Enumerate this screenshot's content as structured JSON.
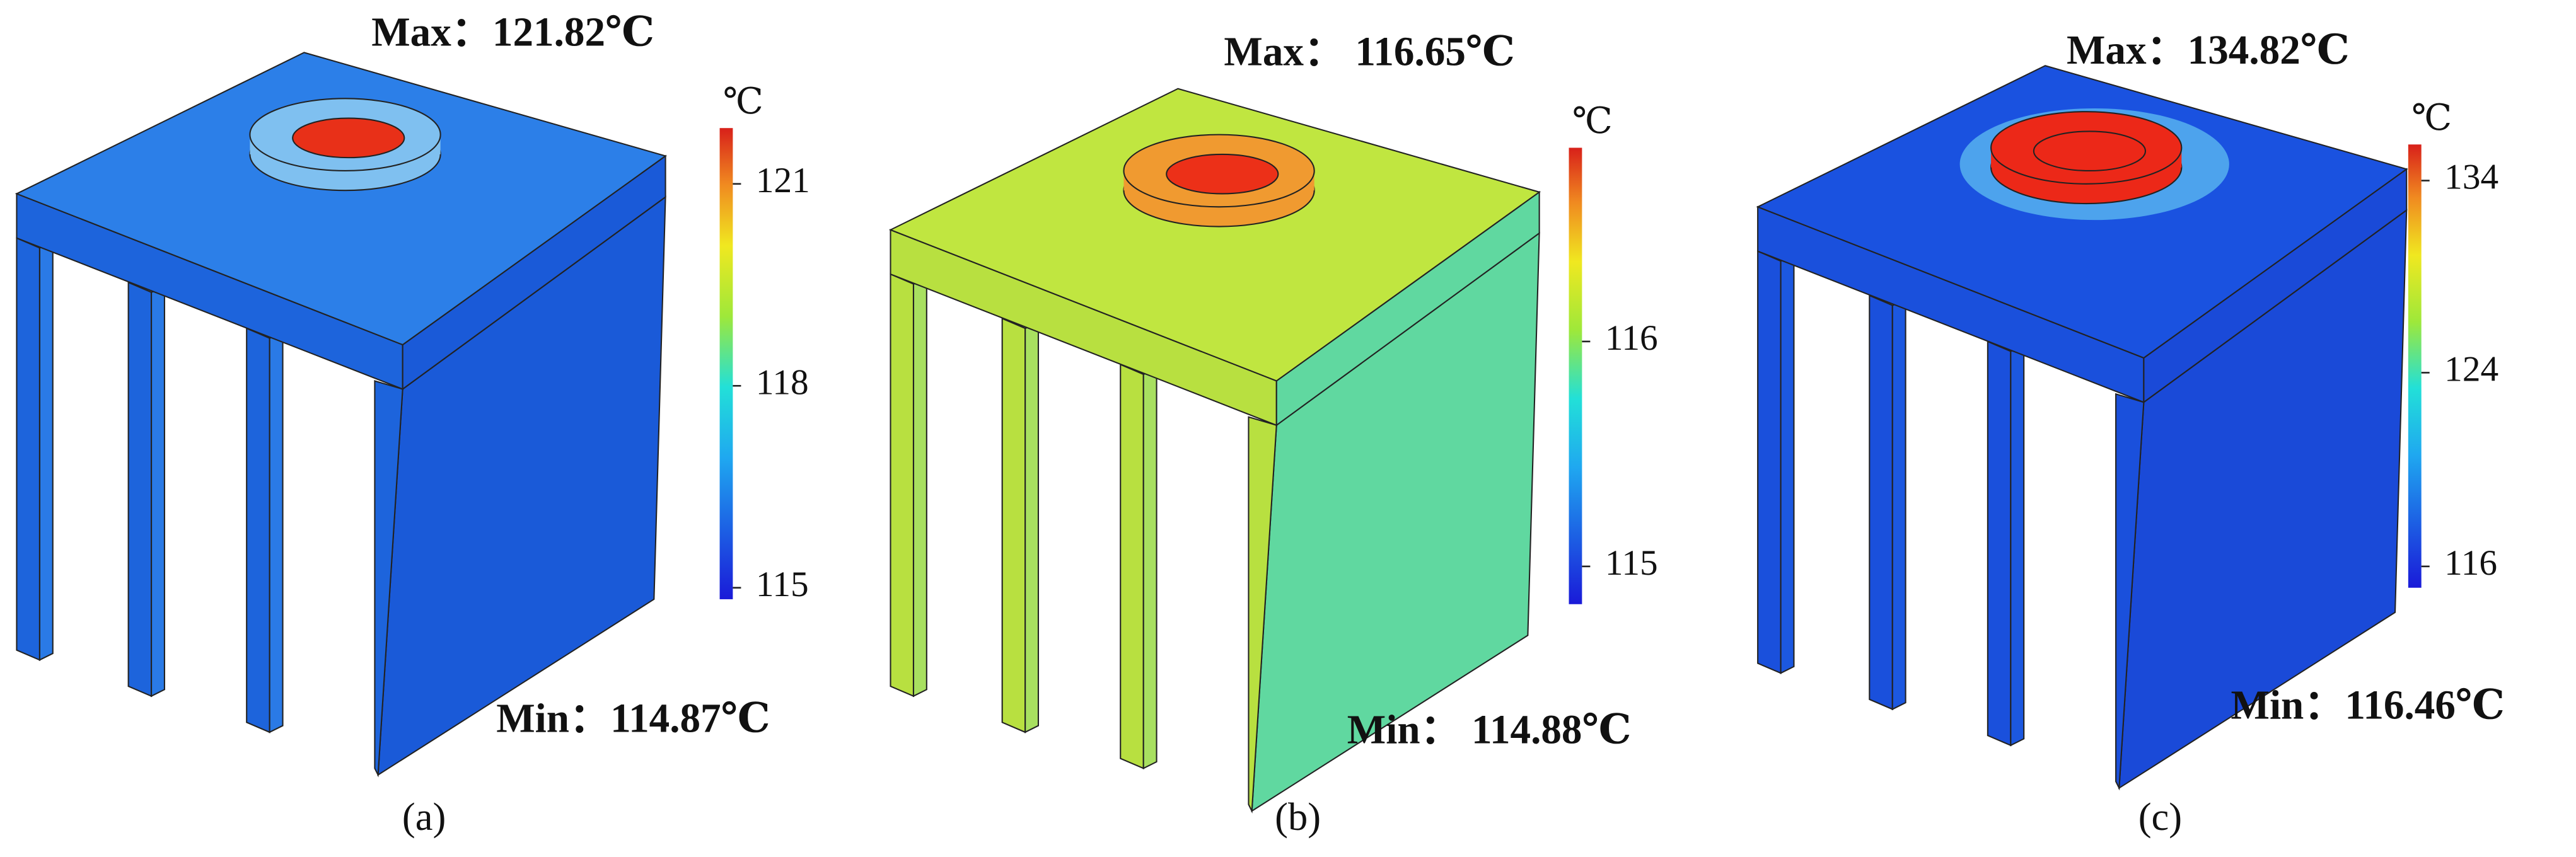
{
  "panels": [
    {
      "max": "Max：121.82℃",
      "min": "Min：114.87℃",
      "unit": "℃",
      "ticks": [
        121,
        118,
        115
      ],
      "caption": "(a)"
    },
    {
      "max": "Max：  116.65℃",
      "min": "Min：  114.88℃",
      "unit": "℃",
      "ticks": [
        116,
        115
      ],
      "caption": "(b)"
    },
    {
      "max": "Max：134.82℃",
      "min": "Min：116.46℃",
      "unit": "℃",
      "ticks": [
        134,
        124,
        116
      ],
      "caption": "(c)"
    }
  ]
}
